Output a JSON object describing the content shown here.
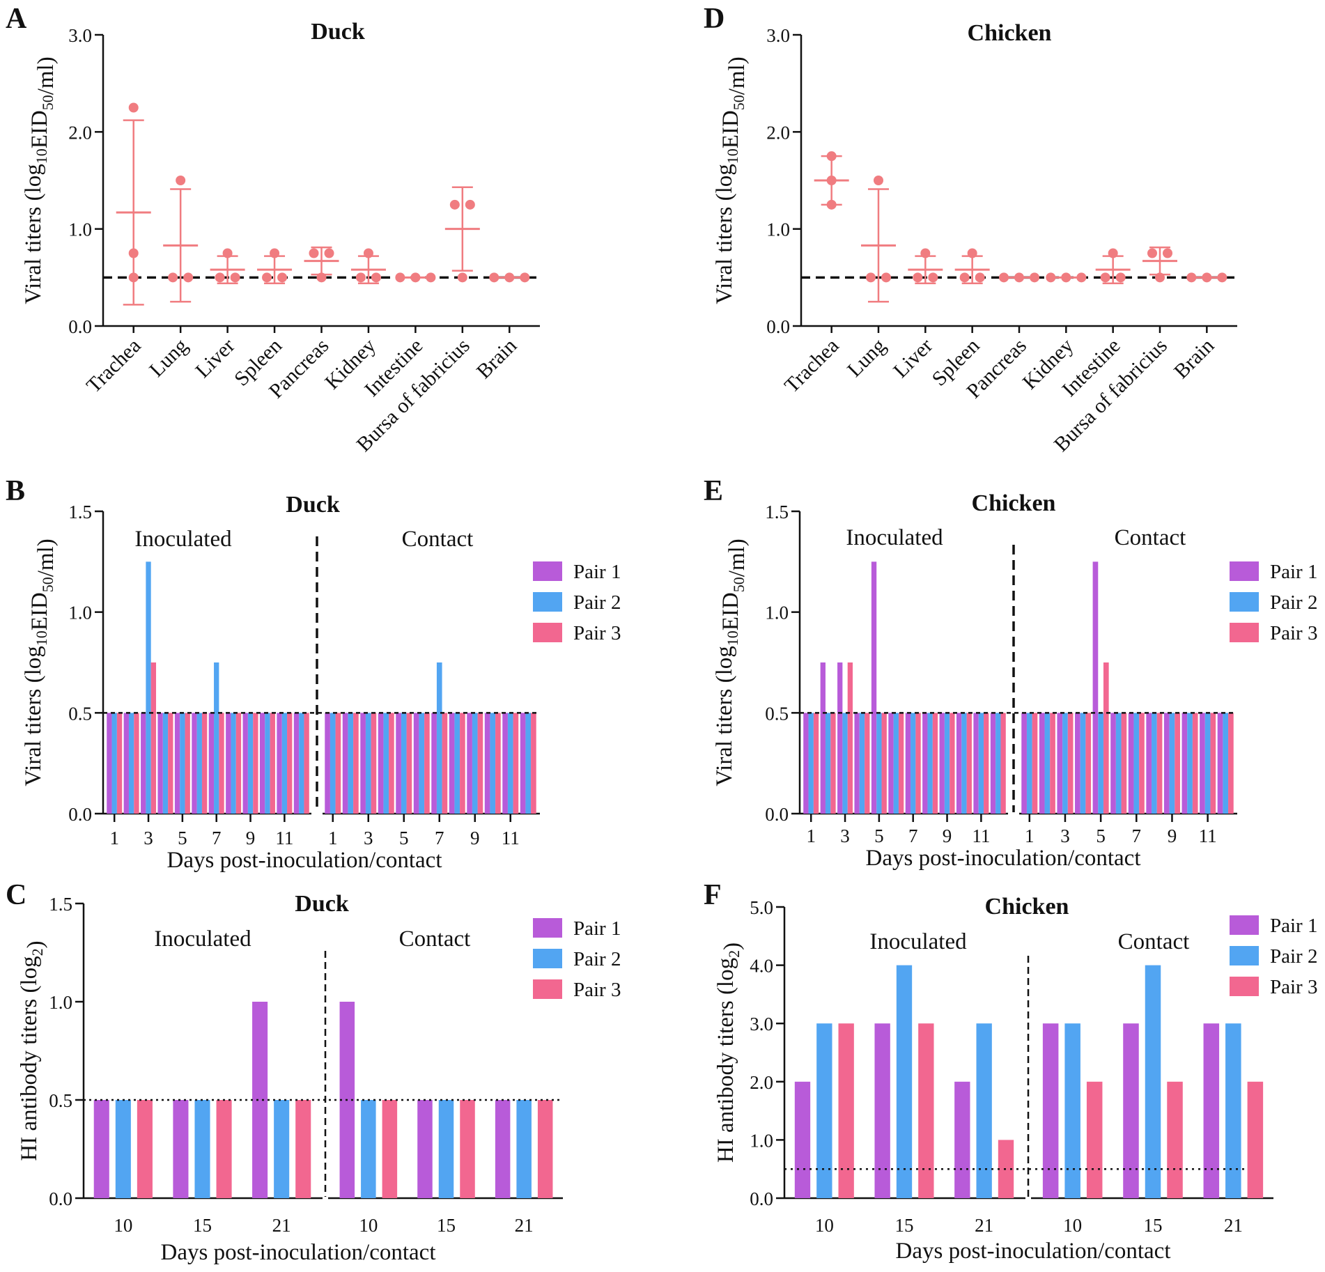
{
  "colors": {
    "scatter": "#f07c80",
    "pair1": "#b85bd9",
    "pair2": "#52a5f2",
    "pair3": "#f26790",
    "axis": "#111111",
    "refline": "#111111"
  },
  "chart_data": [
    {
      "id": "A",
      "panel_label": "A",
      "type": "scatter",
      "title": "Duck",
      "ylabel_main": "Viral titers (log",
      "ylabel_sub": "10",
      "ylabel_mid": "EID",
      "ylabel_sub2": "50",
      "ylabel_end": "/ml)",
      "ylim": [
        0,
        3
      ],
      "yticks": [
        "0.0",
        "1.0",
        "2.0",
        "3.0"
      ],
      "ytick_values": [
        0,
        1,
        2,
        3
      ],
      "reference_line": 0.5,
      "categories": [
        "Trachea",
        "Lung",
        "Liver",
        "Spleen",
        "Pancreas",
        "Kidney",
        "Intestine",
        "Bursa of fabricius",
        "Brain"
      ],
      "points": [
        [
          2.25,
          0.75,
          0.5
        ],
        [
          1.5,
          0.5,
          0.5
        ],
        [
          0.75,
          0.5,
          0.5
        ],
        [
          0.75,
          0.5,
          0.5
        ],
        [
          0.75,
          0.75,
          0.5
        ],
        [
          0.75,
          0.5,
          0.5
        ],
        [
          0.5,
          0.5,
          0.5
        ],
        [
          1.25,
          1.25,
          0.5
        ],
        [
          0.5,
          0.5,
          0.5
        ]
      ],
      "mean": [
        1.17,
        0.83,
        0.58,
        0.58,
        0.67,
        0.58,
        0.5,
        1.0,
        0.5
      ],
      "sd": [
        0.95,
        0.58,
        0.14,
        0.14,
        0.14,
        0.14,
        0,
        0.43,
        0
      ]
    },
    {
      "id": "D",
      "panel_label": "D",
      "type": "scatter",
      "title": "Chicken",
      "ylabel_main": "Viral titers (log",
      "ylabel_sub": "10",
      "ylabel_mid": "EID",
      "ylabel_sub2": "50",
      "ylabel_end": "/ml)",
      "ylim": [
        0,
        3
      ],
      "yticks": [
        "0.0",
        "1.0",
        "2.0",
        "3.0"
      ],
      "ytick_values": [
        0,
        1,
        2,
        3
      ],
      "reference_line": 0.5,
      "categories": [
        "Trachea",
        "Lung",
        "Liver",
        "Spleen",
        "Pancreas",
        "Kidney",
        "Intestine",
        "Bursa of fabricius",
        "Brain"
      ],
      "points": [
        [
          1.75,
          1.5,
          1.25
        ],
        [
          1.5,
          0.5,
          0.5
        ],
        [
          0.75,
          0.5,
          0.5
        ],
        [
          0.75,
          0.5,
          0.5
        ],
        [
          0.5,
          0.5,
          0.5
        ],
        [
          0.5,
          0.5,
          0.5
        ],
        [
          0.75,
          0.5,
          0.5
        ],
        [
          0.75,
          0.75,
          0.5
        ],
        [
          0.5,
          0.5,
          0.5
        ]
      ],
      "mean": [
        1.5,
        0.83,
        0.58,
        0.58,
        0.5,
        0.5,
        0.58,
        0.67,
        0.5
      ],
      "sd": [
        0.25,
        0.58,
        0.14,
        0.14,
        0,
        0,
        0.14,
        0.14,
        0
      ]
    },
    {
      "id": "B",
      "panel_label": "B",
      "type": "bar",
      "title": "Duck",
      "ylabel_main": "Viral titers (log",
      "ylabel_sub": "10",
      "ylabel_mid": "EID",
      "ylabel_sub2": "50",
      "ylabel_end": "/ml)",
      "xlabel": "Days post-inoculation/contact",
      "ylim": [
        0,
        1.5
      ],
      "yticks": [
        "0.0",
        "0.5",
        "1.0",
        "1.5"
      ],
      "ytick_values": [
        0,
        0.5,
        1.0,
        1.5
      ],
      "reference_line": 0.5,
      "group_labels": [
        "Inoculated",
        "Contact"
      ],
      "categories": [
        "1",
        "2",
        "3",
        "4",
        "5",
        "6",
        "7",
        "8",
        "9",
        "10",
        "11",
        "12",
        "1",
        "2",
        "3",
        "4",
        "5",
        "6",
        "7",
        "8",
        "9",
        "10",
        "11",
        "12"
      ],
      "tick_labels": [
        "1",
        "3",
        "5",
        "7",
        "9",
        "11",
        "1",
        "3",
        "5",
        "7",
        "9",
        "11"
      ],
      "legend": [
        "Pair 1",
        "Pair 2",
        "Pair 3"
      ],
      "series": [
        {
          "name": "Pair 1",
          "values": [
            0.5,
            0.5,
            0.5,
            0.5,
            0.5,
            0.5,
            0.5,
            0.5,
            0.5,
            0.5,
            0.5,
            0.5,
            0.5,
            0.5,
            0.5,
            0.5,
            0.5,
            0.5,
            0.5,
            0.5,
            0.5,
            0.5,
            0.5,
            0.5
          ]
        },
        {
          "name": "Pair 2",
          "values": [
            0.5,
            0.5,
            1.25,
            0.5,
            0.5,
            0.5,
            0.75,
            0.5,
            0.5,
            0.5,
            0.5,
            0.5,
            0.5,
            0.5,
            0.5,
            0.5,
            0.5,
            0.5,
            0.75,
            0.5,
            0.5,
            0.5,
            0.5,
            0.5
          ]
        },
        {
          "name": "Pair 3",
          "values": [
            0.5,
            0.5,
            0.75,
            0.5,
            0.5,
            0.5,
            0.5,
            0.5,
            0.5,
            0.5,
            0.5,
            0.5,
            0.5,
            0.5,
            0.5,
            0.5,
            0.5,
            0.5,
            0.5,
            0.5,
            0.5,
            0.5,
            0.5,
            0.5
          ]
        }
      ]
    },
    {
      "id": "E",
      "panel_label": "E",
      "type": "bar",
      "title": "Chicken",
      "ylabel_main": "Viral titers (log",
      "ylabel_sub": "10",
      "ylabel_mid": "EID",
      "ylabel_sub2": "50",
      "ylabel_end": "/ml)",
      "xlabel": "Days post-inoculation/contact",
      "ylim": [
        0,
        1.5
      ],
      "yticks": [
        "0.0",
        "0.5",
        "1.0",
        "1.5"
      ],
      "ytick_values": [
        0,
        0.5,
        1.0,
        1.5
      ],
      "reference_line": 0.5,
      "group_labels": [
        "Inoculated",
        "Contact"
      ],
      "categories": [
        "1",
        "2",
        "3",
        "4",
        "5",
        "6",
        "7",
        "8",
        "9",
        "10",
        "11",
        "12",
        "1",
        "2",
        "3",
        "4",
        "5",
        "6",
        "7",
        "8",
        "9",
        "10",
        "11",
        "12"
      ],
      "tick_labels": [
        "1",
        "3",
        "5",
        "7",
        "9",
        "11",
        "1",
        "3",
        "5",
        "7",
        "9",
        "11"
      ],
      "legend": [
        "Pair 1",
        "Pair 2",
        "Pair 3"
      ],
      "series": [
        {
          "name": "Pair 1",
          "values": [
            0.5,
            0.75,
            0.75,
            0.5,
            1.25,
            0.5,
            0.5,
            0.5,
            0.5,
            0.5,
            0.5,
            0.5,
            0.5,
            0.5,
            0.5,
            0.5,
            1.25,
            0.5,
            0.5,
            0.5,
            0.5,
            0.5,
            0.5,
            0.5
          ]
        },
        {
          "name": "Pair 2",
          "values": [
            0.5,
            0.5,
            0.5,
            0.5,
            0.5,
            0.5,
            0.5,
            0.5,
            0.5,
            0.5,
            0.5,
            0.5,
            0.5,
            0.5,
            0.5,
            0.5,
            0.5,
            0.5,
            0.5,
            0.5,
            0.5,
            0.5,
            0.5,
            0.5
          ]
        },
        {
          "name": "Pair 3",
          "values": [
            0.5,
            0.5,
            0.75,
            0.5,
            0.5,
            0.5,
            0.5,
            0.5,
            0.5,
            0.5,
            0.5,
            0.5,
            0.5,
            0.5,
            0.5,
            0.5,
            0.75,
            0.5,
            0.5,
            0.5,
            0.5,
            0.5,
            0.5,
            0.5
          ]
        }
      ]
    },
    {
      "id": "C",
      "panel_label": "C",
      "type": "bar",
      "title": "Duck",
      "ylabel_main": "HI antibody titers (log",
      "ylabel_sub": "2",
      "ylabel_mid": "",
      "ylabel_sub2": "",
      "ylabel_end": ")",
      "xlabel": "Days post-inoculation/contact",
      "ylim": [
        0,
        1.5
      ],
      "yticks": [
        "0.0",
        "0.5",
        "1.0",
        "1.5"
      ],
      "ytick_values": [
        0,
        0.5,
        1.0,
        1.5
      ],
      "reference_line": 0.5,
      "group_labels": [
        "Inoculated",
        "Contact"
      ],
      "categories": [
        "10",
        "15",
        "21",
        "10",
        "15",
        "21"
      ],
      "tick_labels": [
        "10",
        "15",
        "21",
        "10",
        "15",
        "21"
      ],
      "legend": [
        "Pair 1",
        "Pair 2",
        "Pair 3"
      ],
      "series": [
        {
          "name": "Pair 1",
          "values": [
            0.5,
            0.5,
            1.0,
            1.0,
            0.5,
            0.5
          ]
        },
        {
          "name": "Pair 2",
          "values": [
            0.5,
            0.5,
            0.5,
            0.5,
            0.5,
            0.5
          ]
        },
        {
          "name": "Pair 3",
          "values": [
            0.5,
            0.5,
            0.5,
            0.5,
            0.5,
            0.5
          ]
        }
      ]
    },
    {
      "id": "F",
      "panel_label": "F",
      "type": "bar",
      "title": "Chicken",
      "ylabel_main": "HI antibody titers (log",
      "ylabel_sub": "2",
      "ylabel_mid": "",
      "ylabel_sub2": "",
      "ylabel_end": ")",
      "xlabel": "Days post-inoculation/contact",
      "ylim": [
        0,
        5
      ],
      "yticks": [
        "0.0",
        "1.0",
        "2.0",
        "3.0",
        "4.0",
        "5.0"
      ],
      "ytick_values": [
        0,
        1,
        2,
        3,
        4,
        5
      ],
      "reference_line": 0.5,
      "group_labels": [
        "Inoculated",
        "Contact"
      ],
      "categories": [
        "10",
        "15",
        "21",
        "10",
        "15",
        "21"
      ],
      "tick_labels": [
        "10",
        "15",
        "21",
        "10",
        "15",
        "21"
      ],
      "legend": [
        "Pair 1",
        "Pair 2",
        "Pair 3"
      ],
      "series": [
        {
          "name": "Pair 1",
          "values": [
            2,
            3,
            2,
            3,
            3,
            3
          ]
        },
        {
          "name": "Pair 2",
          "values": [
            3,
            4,
            3,
            3,
            4,
            3
          ]
        },
        {
          "name": "Pair 3",
          "values": [
            3,
            3,
            1,
            2,
            2,
            2
          ]
        }
      ]
    }
  ]
}
